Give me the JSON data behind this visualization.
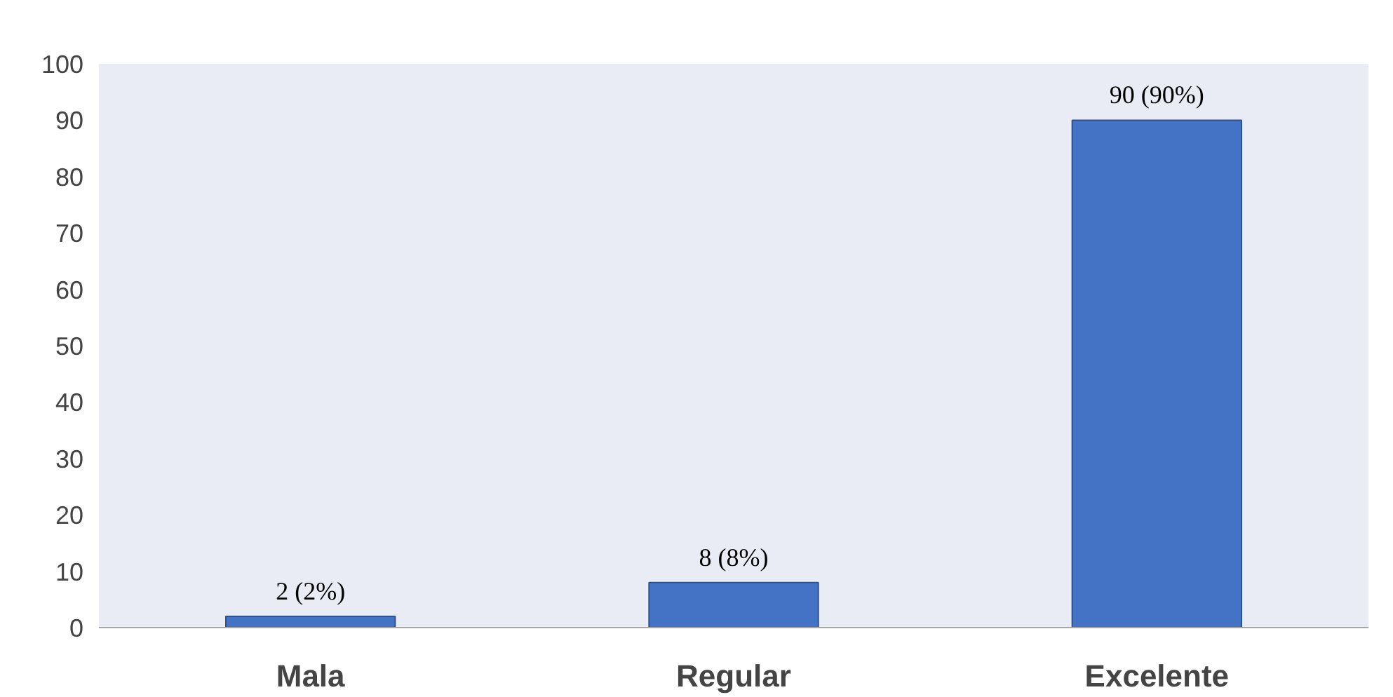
{
  "chart_data": {
    "type": "bar",
    "categories": [
      "Mala",
      "Regular",
      "Excelente"
    ],
    "values": [
      2,
      8,
      90
    ],
    "color": "#4472c4",
    "value_labels": [
      "2 (2%)",
      "8 (8%)",
      "90 (90%)"
    ],
    "ylim": [
      0,
      100
    ],
    "yticks": [
      0,
      10,
      20,
      30,
      40,
      50,
      60,
      70,
      80,
      90,
      100
    ]
  }
}
